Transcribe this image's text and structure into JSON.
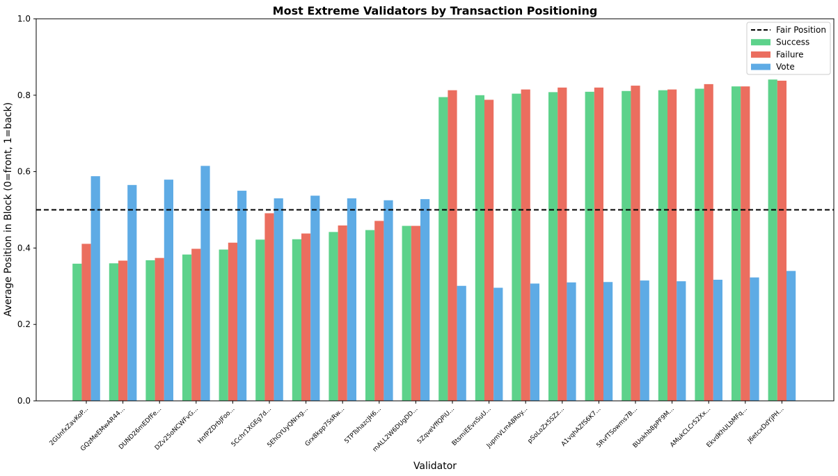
{
  "chart_data": {
    "type": "bar",
    "title": "Most Extreme Validators by Transaction Positioning",
    "xlabel": "Validator",
    "ylabel": "Average Position in Block (0=front, 1=back)",
    "ylim": [
      0,
      1.0
    ],
    "yticks": [
      "0.0",
      "0.2",
      "0.4",
      "0.6",
      "0.8",
      "1.0"
    ],
    "categories": [
      "2GUnfxZavKoP...",
      "GQzMeEMwAR44...",
      "DUND26mEDfFe...",
      "DZv25oNCWFvG...",
      "HnfPZDrbJFoo...",
      "5Cchr1XGEg7d...",
      "5EhGYUyQNrxg...",
      "Grx8kpp7SsRw...",
      "5TPTshazcJH6...",
      "mALL2W6DUgDD...",
      "5ZqveVffQPiU...",
      "BtsmiEEvnSuU...",
      "JupmVLmA8Roy...",
      "pSoLoZx5SZz...",
      "A1vqhAZfS6K7...",
      "5RvfTSowms7B...",
      "BUokhb8pPF9M...",
      "AMukCLCr52Xx...",
      "EkvdKhULbMFq...",
      "J6etcxDdYjPH..."
    ],
    "series": [
      {
        "name": "Success",
        "color": "#5dd28b",
        "values": [
          0.359,
          0.36,
          0.368,
          0.383,
          0.396,
          0.422,
          0.423,
          0.442,
          0.447,
          0.458,
          0.795,
          0.8,
          0.804,
          0.808,
          0.809,
          0.811,
          0.813,
          0.817,
          0.823,
          0.841
        ]
      },
      {
        "name": "Failure",
        "color": "#eb6e5f",
        "values": [
          0.411,
          0.367,
          0.374,
          0.398,
          0.414,
          0.491,
          0.438,
          0.459,
          0.471,
          0.458,
          0.813,
          0.788,
          0.815,
          0.82,
          0.82,
          0.825,
          0.815,
          0.829,
          0.823,
          0.838
        ]
      },
      {
        "name": "Vote",
        "color": "#5eabe5",
        "values": [
          0.588,
          0.565,
          0.579,
          0.615,
          0.55,
          0.53,
          0.537,
          0.53,
          0.525,
          0.528,
          0.301,
          0.296,
          0.307,
          0.31,
          0.311,
          0.315,
          0.313,
          0.317,
          0.323,
          0.34
        ]
      }
    ],
    "reference_line": {
      "name": "Fair Position",
      "value": 0.5,
      "style": "dashed",
      "color": "#000000"
    },
    "legend": {
      "position": "top-right"
    },
    "grid": false
  }
}
